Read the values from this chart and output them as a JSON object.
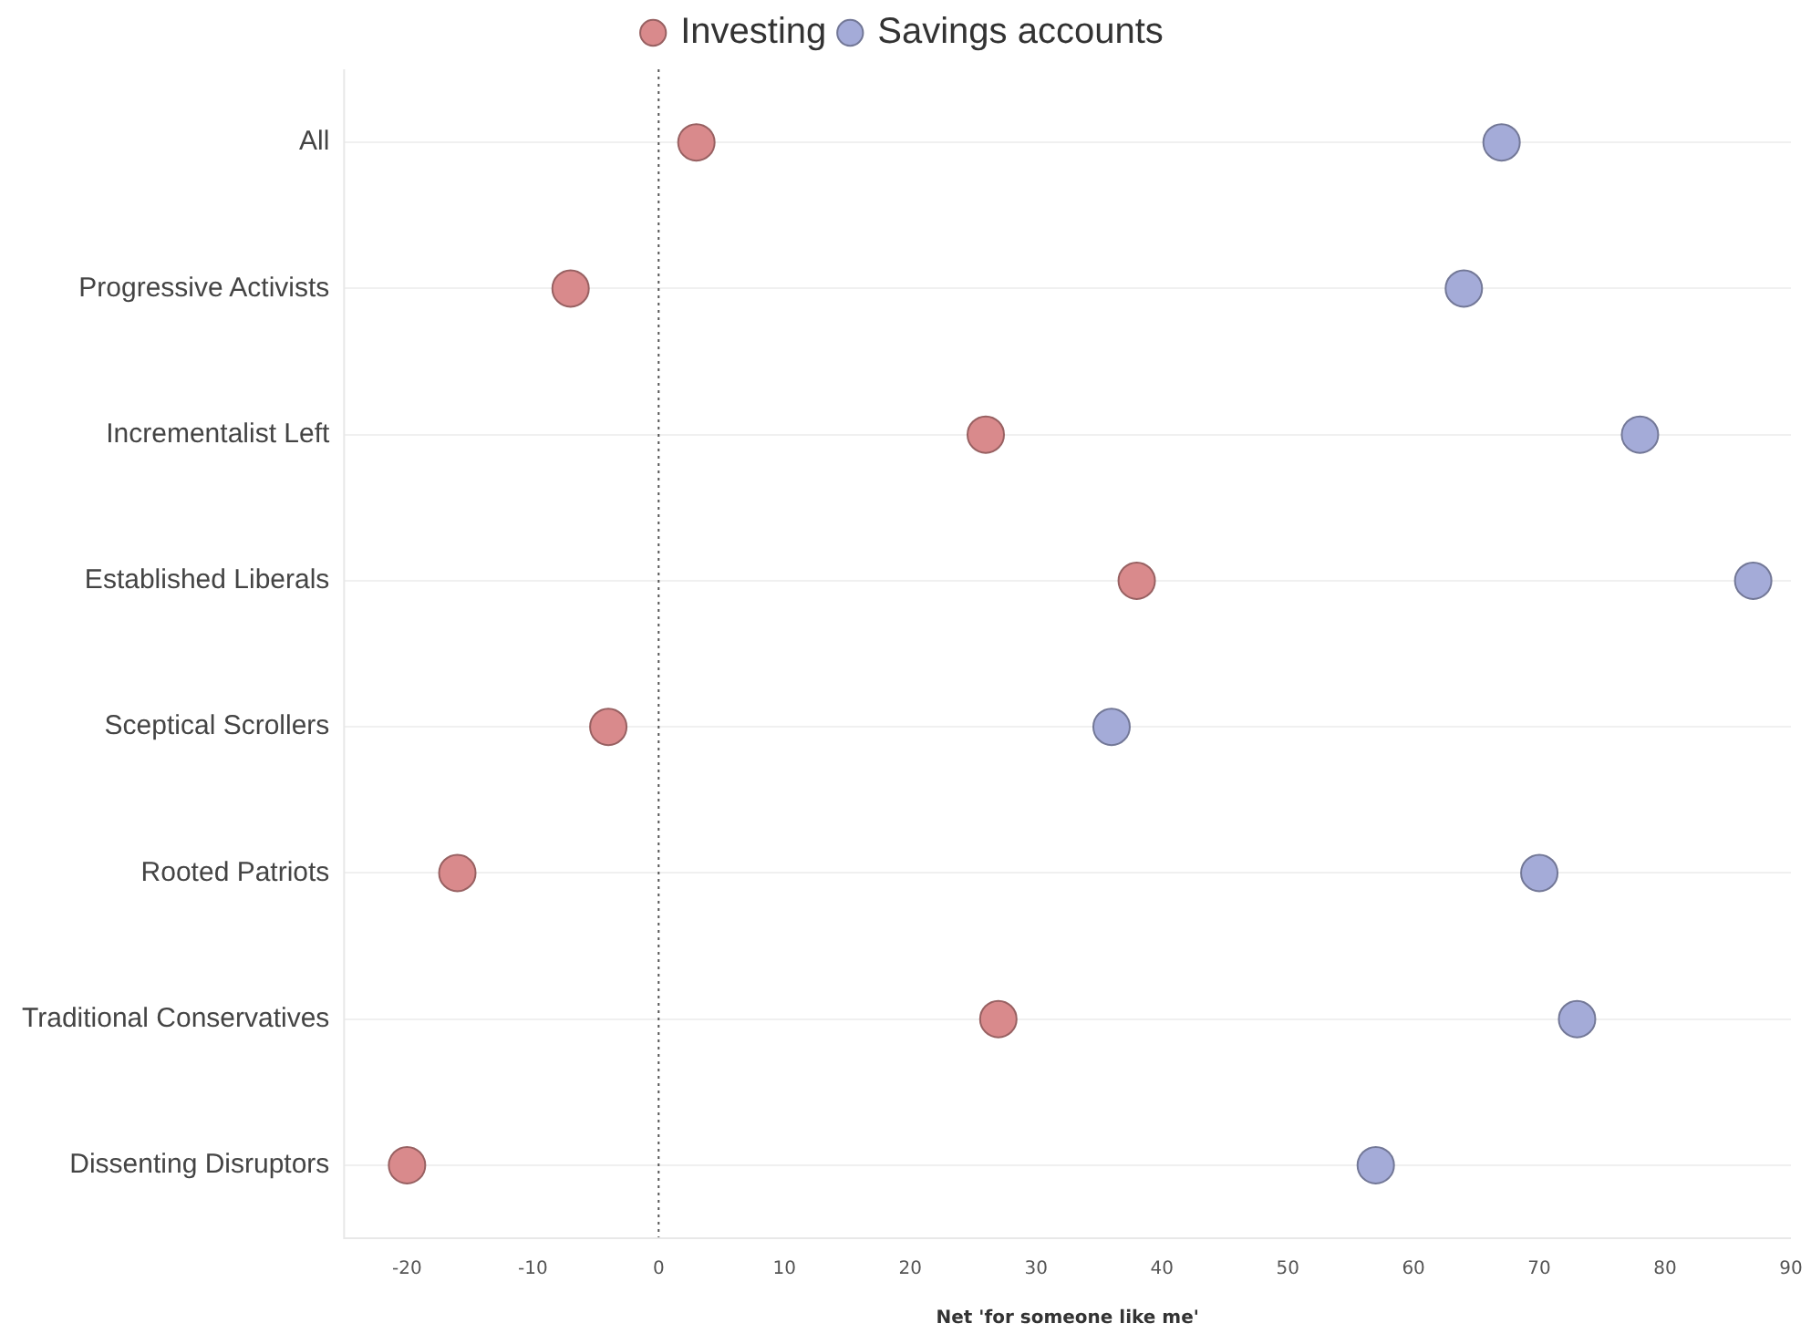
{
  "chart_data": {
    "type": "scatter",
    "xlabel": "Net 'for someone like me'",
    "categories": [
      "All",
      "Progressive Activists",
      "Incrementalist Left",
      "Established Liberals",
      "Sceptical Scrollers",
      "Rooted Patriots",
      "Traditional Conservatives",
      "Dissenting Disruptors"
    ],
    "series": [
      {
        "name": "Investing",
        "color": "#d98a8c",
        "values": [
          3,
          -7,
          26,
          38,
          -4,
          -16,
          27,
          -20
        ]
      },
      {
        "name": "Savings accounts",
        "color": "#a4abd8",
        "values": [
          67,
          64,
          78,
          87,
          36,
          70,
          73,
          57
        ]
      }
    ],
    "orientation": "horizontal",
    "xlim": [
      -25,
      90
    ],
    "xticks": [
      -20,
      -10,
      0,
      10,
      20,
      30,
      40,
      50,
      60,
      70,
      80,
      90
    ],
    "ref_lines": [
      {
        "axis": "x",
        "value": 0,
        "line_style": "dotted",
        "color": "#555555"
      }
    ],
    "grid": "y",
    "legend": "top",
    "marker": "circle"
  }
}
